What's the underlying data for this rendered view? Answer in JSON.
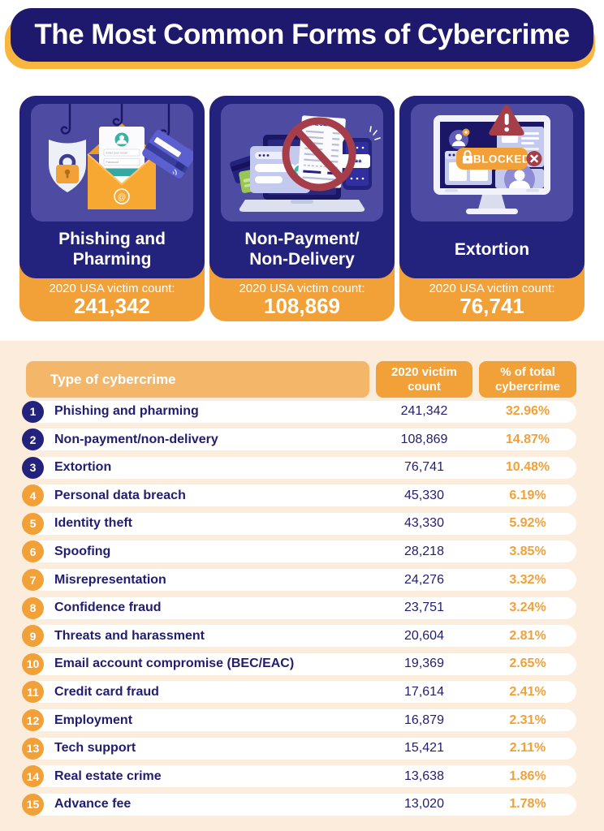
{
  "page": {
    "title": "The Most Common Forms of Cybercrime"
  },
  "colors": {
    "navy_header": "#1e196d",
    "card_navy": "#23227d",
    "panel_purple": "#4e4ba3",
    "orange": "#f2a138",
    "orange_light": "#f4b76a",
    "yellow_shadow": "#f9b63e",
    "peach_background": "#fbecdc",
    "text_navy": "#221d6e",
    "alert_red": "#a63e4a"
  },
  "victim_count_label": "2020 USA victim count:",
  "cards": [
    {
      "title": "Phishing and\nPharming",
      "count": "241,342",
      "illustration": "phishing-hooks-envelope-shield-card",
      "input1_label": "Enter your email",
      "input2_label": "Password"
    },
    {
      "title": "Non-Payment/\nNon-Delivery",
      "count": "108,869",
      "illustration": "laptop-receipt-prohibited",
      "receipt_text": "RECEIPT",
      "bubble_text": "****"
    },
    {
      "title": "Extortion",
      "count": "76,741",
      "illustration": "monitor-blocked-warning",
      "badge_text": "BLOCKED"
    }
  ],
  "table": {
    "headers": {
      "type": "Type of cybercrime",
      "count": "2020 victim\ncount",
      "percent": "% of total\ncybercrime"
    }
  },
  "chart_data": {
    "type": "table",
    "title": "The Most Common Forms of Cybercrime",
    "columns": [
      "Type of cybercrime",
      "2020 victim count",
      "% of total cybercrime"
    ],
    "rows": [
      {
        "rank": "1",
        "label": "Phishing and pharming",
        "count": "241,342",
        "percent": "32.96%",
        "count_num": 241342,
        "percent_num": 32.96
      },
      {
        "rank": "2",
        "label": "Non-payment/non-delivery",
        "count": "108,869",
        "percent": "14.87%",
        "count_num": 108869,
        "percent_num": 14.87
      },
      {
        "rank": "3",
        "label": "Extortion",
        "count": "76,741",
        "percent": "10.48%",
        "count_num": 76741,
        "percent_num": 10.48
      },
      {
        "rank": "4",
        "label": "Personal data breach",
        "count": "45,330",
        "percent": "6.19%",
        "count_num": 45330,
        "percent_num": 6.19
      },
      {
        "rank": "5",
        "label": "Identity theft",
        "count": "43,330",
        "percent": "5.92%",
        "count_num": 43330,
        "percent_num": 5.92
      },
      {
        "rank": "6",
        "label": "Spoofing",
        "count": "28,218",
        "percent": "3.85%",
        "count_num": 28218,
        "percent_num": 3.85
      },
      {
        "rank": "7",
        "label": "Misrepresentation",
        "count": "24,276",
        "percent": "3.32%",
        "count_num": 24276,
        "percent_num": 3.32
      },
      {
        "rank": "8",
        "label": "Confidence fraud",
        "count": "23,751",
        "percent": "3.24%",
        "count_num": 23751,
        "percent_num": 3.24
      },
      {
        "rank": "9",
        "label": "Threats and harassment",
        "count": "20,604",
        "percent": "2.81%",
        "count_num": 20604,
        "percent_num": 2.81
      },
      {
        "rank": "10",
        "label": "Email account compromise (BEC/EAC)",
        "count": "19,369",
        "percent": "2.65%",
        "count_num": 19369,
        "percent_num": 2.65
      },
      {
        "rank": "11",
        "label": "Credit card fraud",
        "count": "17,614",
        "percent": "2.41%",
        "count_num": 17614,
        "percent_num": 2.41
      },
      {
        "rank": "12",
        "label": "Employment",
        "count": "16,879",
        "percent": "2.31%",
        "count_num": 16879,
        "percent_num": 2.31
      },
      {
        "rank": "13",
        "label": "Tech support",
        "count": "15,421",
        "percent": "2.11%",
        "count_num": 15421,
        "percent_num": 2.11
      },
      {
        "rank": "14",
        "label": "Real estate crime",
        "count": "13,638",
        "percent": "1.86%",
        "count_num": 13638,
        "percent_num": 1.86
      },
      {
        "rank": "15",
        "label": "Advance fee",
        "count": "13,020",
        "percent": "1.78%",
        "count_num": 13020,
        "percent_num": 1.78
      }
    ]
  }
}
